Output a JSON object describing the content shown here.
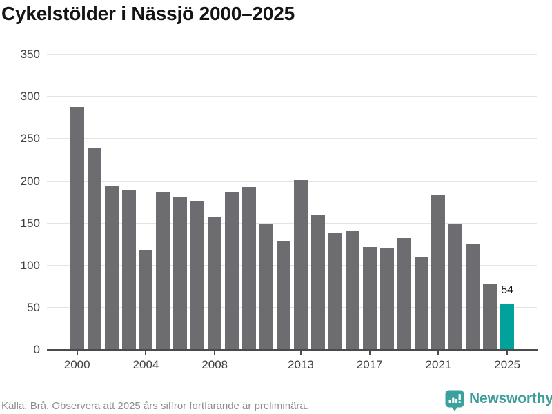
{
  "title": "Cykelstölder i Nässjö 2000–2025",
  "footer": {
    "source_note": "Källa: Brå. Observera att 2025 års siffror fortfarande är preliminära.",
    "brand": "Newsworthy"
  },
  "colors": {
    "bar": "#6c6c71",
    "highlight": "#00a29b",
    "grid": "#e4e4e4",
    "axis": "#4a4a4a",
    "tick_text": "#3f3f3f",
    "title_text": "#141414",
    "footer_text": "#8e8e8e",
    "brand_teal": "#3d9e99",
    "logo_icon": "#3aa29c"
  },
  "chart_data": {
    "type": "bar",
    "title": "Cykelstölder i Nässjö 2000–2025",
    "categories": [
      2000,
      2001,
      2002,
      2003,
      2004,
      2005,
      2006,
      2007,
      2008,
      2009,
      2010,
      2011,
      2012,
      2013,
      2014,
      2015,
      2016,
      2017,
      2018,
      2019,
      2020,
      2021,
      2022,
      2023,
      2024,
      2025
    ],
    "values": [
      288,
      240,
      195,
      190,
      119,
      187,
      182,
      177,
      158,
      187,
      193,
      150,
      129,
      201,
      160,
      139,
      141,
      122,
      120,
      133,
      110,
      184,
      149,
      126,
      79,
      54
    ],
    "highlight_year": 2025,
    "data_labels": [
      {
        "year": 2025,
        "text": "54"
      }
    ],
    "ylim": [
      0,
      350
    ],
    "yticks": [
      0,
      50,
      100,
      150,
      200,
      250,
      300,
      350
    ],
    "xtick_years": [
      2000,
      2004,
      2008,
      2013,
      2017,
      2021,
      2025
    ],
    "grid": "horizontal",
    "legend": "none"
  }
}
